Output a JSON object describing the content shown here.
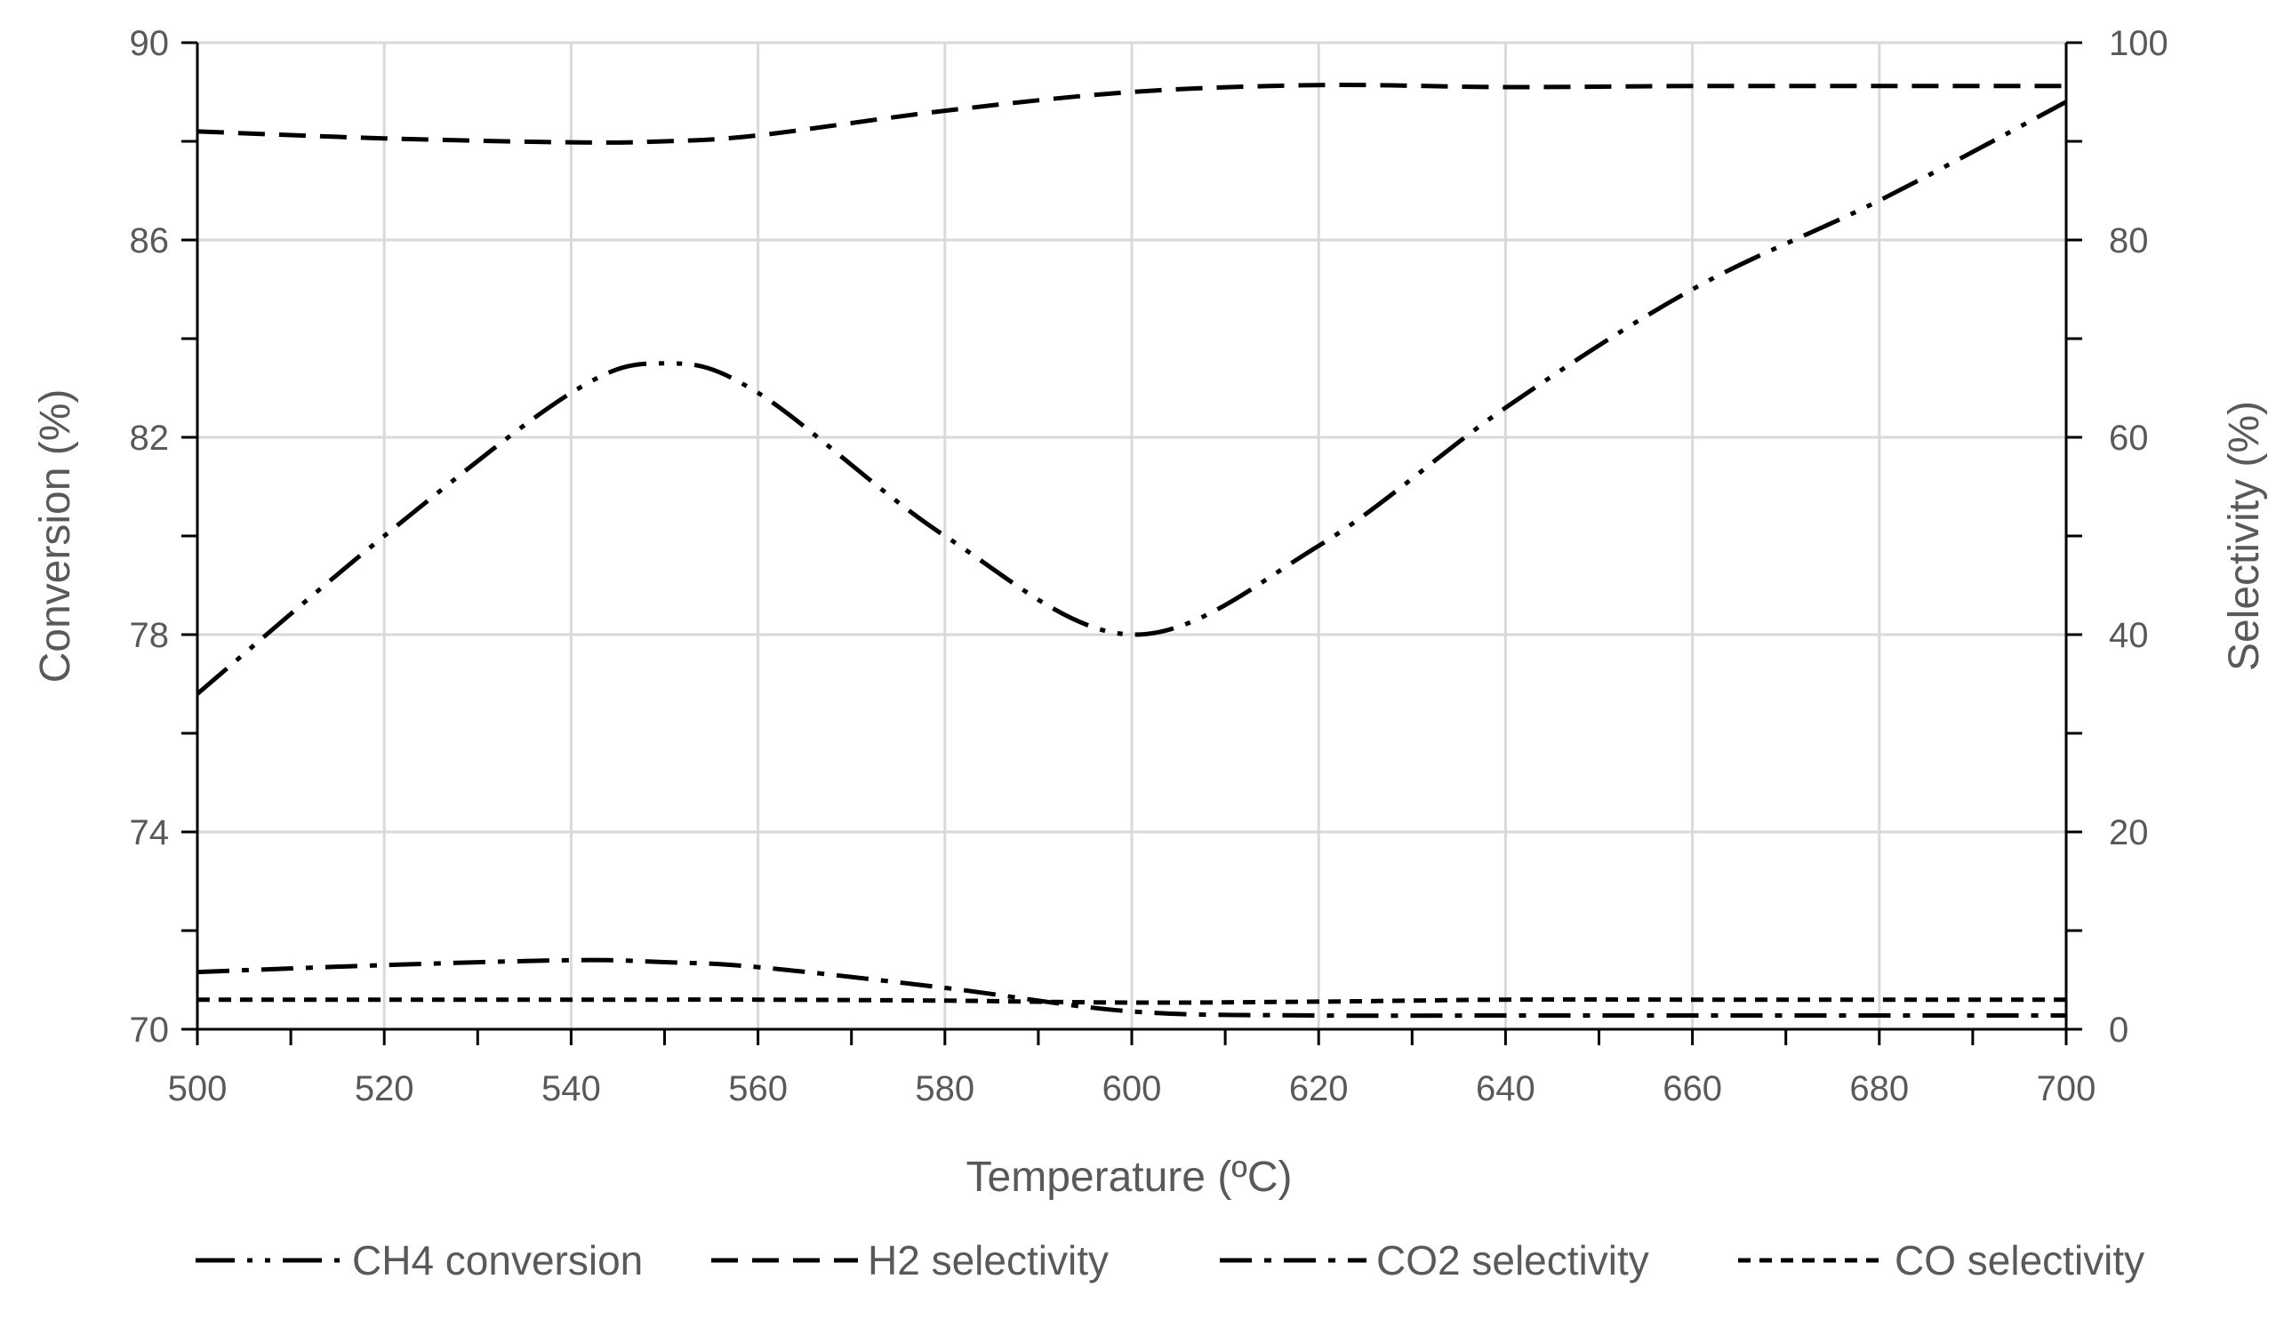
{
  "chart_data": {
    "type": "line",
    "title": "",
    "xlabel": "Temperature (ºC)",
    "ylabel_left": "Conversion (%)",
    "ylabel_right": "Selectivity (%)",
    "xlim": [
      500,
      700
    ],
    "ylim_left": [
      70,
      90
    ],
    "ylim_right": [
      0,
      100
    ],
    "x_ticks": [
      500,
      520,
      540,
      560,
      580,
      600,
      620,
      640,
      660,
      680,
      700
    ],
    "y_left_ticks": [
      70,
      74,
      78,
      82,
      86,
      90
    ],
    "y_right_ticks": [
      0,
      20,
      40,
      60,
      80,
      100
    ],
    "grid": true,
    "legend_position": "bottom",
    "series": [
      {
        "name": "CH4 conversion",
        "axis": "left",
        "dash": "dash-dot-dot",
        "x": [
          500,
          520,
          540,
          550,
          560,
          580,
          600,
          620,
          640,
          660,
          680,
          700
        ],
        "y": [
          76.8,
          80.0,
          82.9,
          83.5,
          82.9,
          80.0,
          78.0,
          79.8,
          82.6,
          85.0,
          86.8,
          88.8
        ]
      },
      {
        "name": "H2 selectivity",
        "axis": "right",
        "dash": "long-dash",
        "x": [
          500,
          520,
          540,
          550,
          560,
          580,
          600,
          620,
          640,
          660,
          680,
          700
        ],
        "y": [
          91.0,
          90.3,
          89.9,
          90.0,
          90.6,
          93.1,
          95.0,
          95.7,
          95.5,
          95.6,
          95.6,
          95.6
        ]
      },
      {
        "name": "CO2 selectivity",
        "axis": "right",
        "dash": "dash-dot",
        "x": [
          500,
          520,
          540,
          550,
          560,
          580,
          600,
          620,
          640,
          660,
          680,
          700
        ],
        "y": [
          5.8,
          6.5,
          7.0,
          6.8,
          6.3,
          4.2,
          1.8,
          1.4,
          1.4,
          1.4,
          1.4,
          1.4
        ]
      },
      {
        "name": "CO selectivity",
        "axis": "right",
        "dash": "short-dash",
        "x": [
          500,
          520,
          540,
          550,
          560,
          580,
          600,
          620,
          640,
          660,
          680,
          700
        ],
        "y": [
          3.0,
          3.0,
          3.0,
          3.0,
          3.0,
          2.9,
          2.7,
          2.8,
          3.0,
          3.0,
          3.0,
          3.0
        ]
      }
    ]
  }
}
